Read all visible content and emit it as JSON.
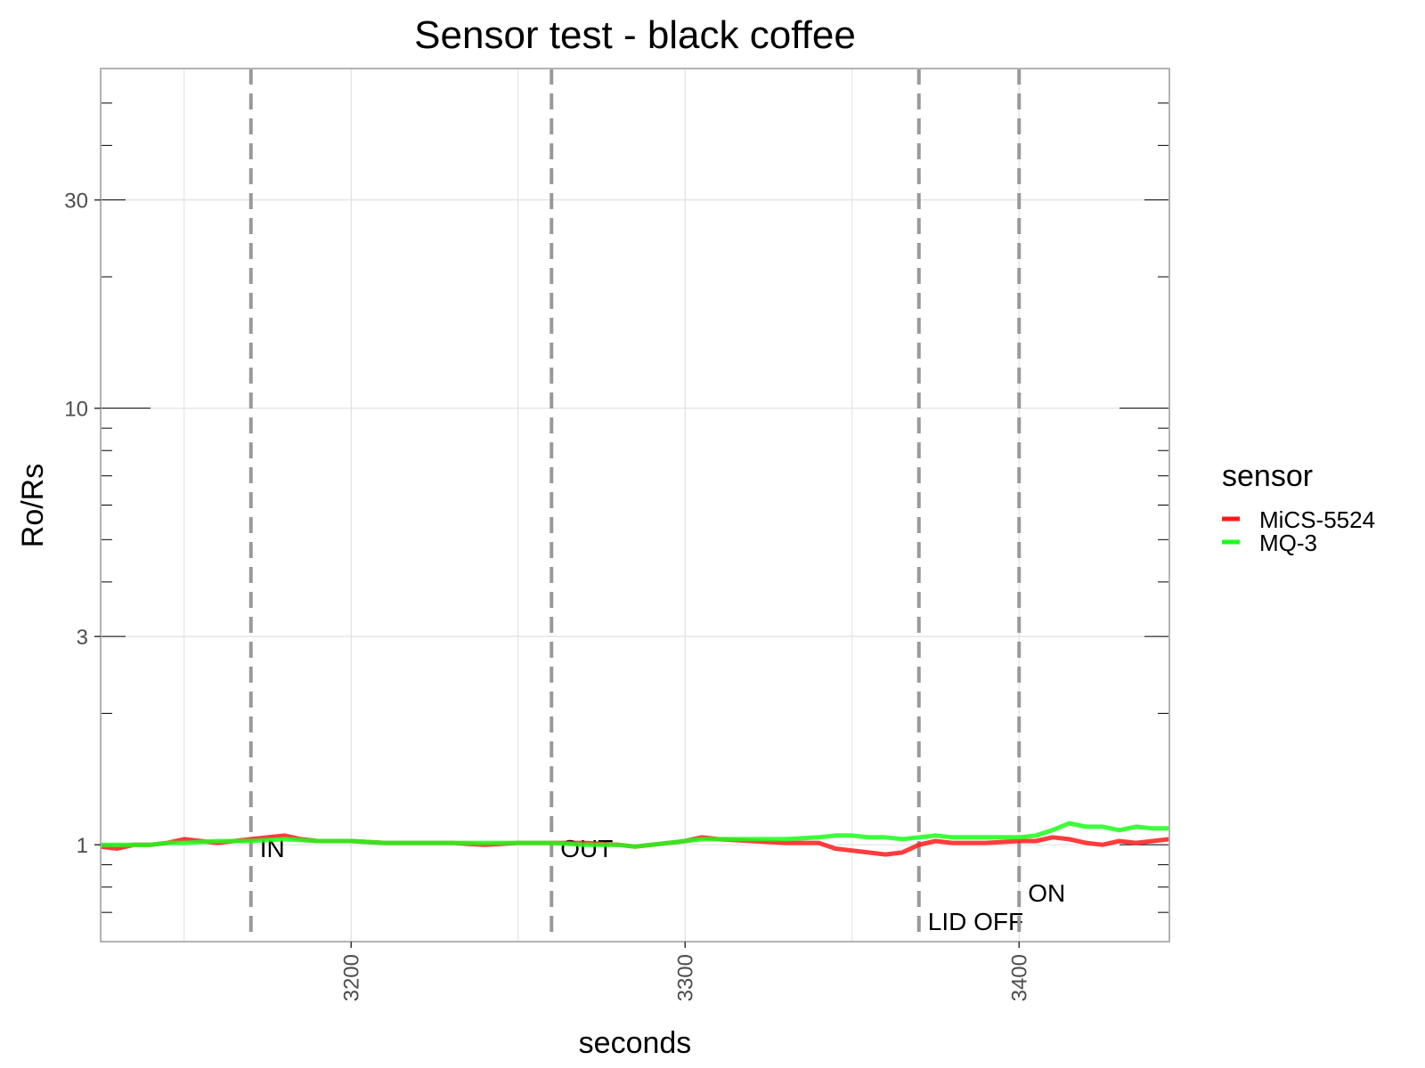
{
  "chart_data": {
    "type": "line",
    "title": "Sensor test - black coffee",
    "xlabel": "seconds",
    "ylabel": "Ro/Rs",
    "xlim": [
      3125,
      3445
    ],
    "ylim": [
      0.6,
      60
    ],
    "y_scale": "log",
    "grid": true,
    "x_ticks": [
      3200,
      3300,
      3400
    ],
    "x_tick_labels": [
      "3200",
      "3300",
      "3400"
    ],
    "x_minor_grid": [
      3150,
      3250,
      3350
    ],
    "y_ticks": [
      1,
      3,
      10,
      30
    ],
    "y_tick_labels": [
      "1",
      "3",
      "10",
      "30"
    ],
    "y_minor_ticks": [
      0.6,
      0.7,
      0.8,
      0.9,
      2,
      4,
      5,
      6,
      7,
      8,
      9,
      20,
      40,
      50,
      60
    ],
    "legend": {
      "title": "sensor",
      "position": "right"
    },
    "events": [
      {
        "x": 3170,
        "label": "IN"
      },
      {
        "x": 3260,
        "label": "OUT"
      },
      {
        "x": 3370,
        "label": "LID OFF"
      },
      {
        "x": 3400,
        "label": "ON"
      }
    ],
    "colors": {
      "event_line": "#999999",
      "grid": "#e0e0e0",
      "panel_border": "#b3b3b3"
    },
    "series": [
      {
        "name": "MiCS-5524",
        "color": "#ff1a1a",
        "x": [
          3125,
          3130,
          3135,
          3140,
          3145,
          3150,
          3155,
          3160,
          3165,
          3170,
          3175,
          3180,
          3185,
          3190,
          3200,
          3210,
          3220,
          3230,
          3240,
          3250,
          3260,
          3270,
          3280,
          3285,
          3290,
          3300,
          3305,
          3310,
          3320,
          3330,
          3340,
          3345,
          3350,
          3355,
          3360,
          3365,
          3370,
          3375,
          3380,
          3390,
          3400,
          3405,
          3410,
          3415,
          3420,
          3425,
          3430,
          3435,
          3440,
          3445
        ],
        "values": [
          0.99,
          0.98,
          1.0,
          1.0,
          1.01,
          1.03,
          1.02,
          1.01,
          1.02,
          1.03,
          1.04,
          1.05,
          1.03,
          1.02,
          1.02,
          1.01,
          1.01,
          1.01,
          1.0,
          1.01,
          1.01,
          1.01,
          1.0,
          0.99,
          1.0,
          1.02,
          1.04,
          1.03,
          1.02,
          1.01,
          1.01,
          0.98,
          0.97,
          0.96,
          0.95,
          0.96,
          1.0,
          1.02,
          1.01,
          1.01,
          1.02,
          1.02,
          1.04,
          1.03,
          1.01,
          1.0,
          1.02,
          1.01,
          1.02,
          1.03
        ]
      },
      {
        "name": "MQ-3",
        "color": "#1aff1a",
        "x": [
          3125,
          3130,
          3135,
          3140,
          3145,
          3150,
          3160,
          3170,
          3180,
          3190,
          3200,
          3210,
          3220,
          3230,
          3240,
          3250,
          3260,
          3270,
          3280,
          3285,
          3290,
          3300,
          3305,
          3310,
          3320,
          3330,
          3340,
          3345,
          3350,
          3355,
          3360,
          3365,
          3370,
          3375,
          3380,
          3390,
          3400,
          3405,
          3410,
          3415,
          3420,
          3425,
          3430,
          3435,
          3440,
          3445
        ],
        "values": [
          1.0,
          1.0,
          1.0,
          1.0,
          1.01,
          1.01,
          1.02,
          1.02,
          1.03,
          1.02,
          1.02,
          1.01,
          1.01,
          1.01,
          1.01,
          1.01,
          1.01,
          1.0,
          1.0,
          0.99,
          1.0,
          1.02,
          1.03,
          1.03,
          1.03,
          1.03,
          1.04,
          1.05,
          1.05,
          1.04,
          1.04,
          1.03,
          1.04,
          1.05,
          1.04,
          1.04,
          1.04,
          1.05,
          1.08,
          1.12,
          1.1,
          1.1,
          1.08,
          1.1,
          1.09,
          1.09
        ]
      }
    ]
  }
}
